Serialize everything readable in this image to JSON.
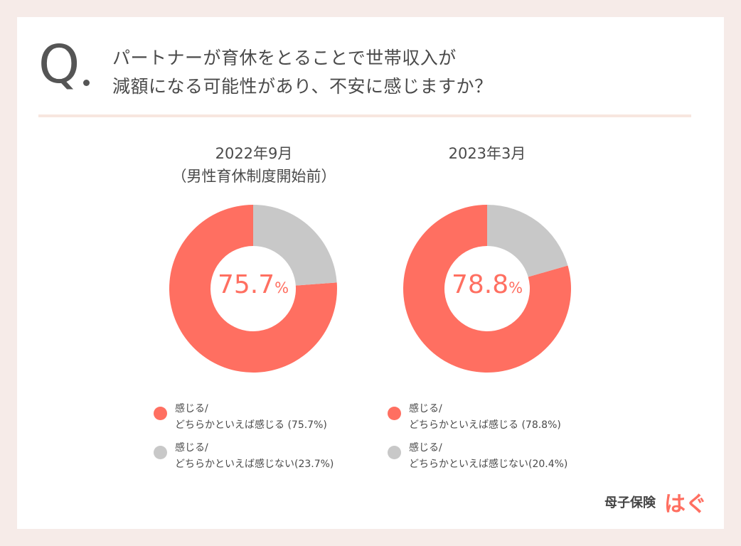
{
  "question": {
    "mark": "Q",
    "line1": "パートナーが育休をとることで世帯収入が",
    "line2": "減額になる可能性があり、不安に感じますか？"
  },
  "chart_data": [
    {
      "type": "pie",
      "donut": true,
      "title_line1": "2022年9月",
      "title_line2": "（男性育休制度開始前）",
      "center_value": "75.7",
      "center_unit": "%",
      "slices": [
        {
          "label": "感じる/どちらかといえば感じる",
          "value": 75.7,
          "color": "#ff6f61"
        },
        {
          "label": "感じる/どちらかといえば感じない",
          "value": 23.7,
          "color": "#c8c8c8"
        }
      ],
      "legend": [
        {
          "line1": "感じる/",
          "line2": "どちらかといえば感じる (75.7%)",
          "color": "#ff6f61"
        },
        {
          "line1": "感じる/",
          "line2": "どちらかといえば感じない(23.7%)",
          "color": "#c8c8c8"
        }
      ]
    },
    {
      "type": "pie",
      "donut": true,
      "title_line1": "2023年3月",
      "center_value": "78.8",
      "center_unit": "%",
      "slices": [
        {
          "label": "感じる/どちらかといえば感じる",
          "value": 78.8,
          "color": "#ff6f61"
        },
        {
          "label": "感じる/どちらかといえば感じない",
          "value": 20.4,
          "color": "#c8c8c8"
        }
      ],
      "legend": [
        {
          "line1": "感じる/",
          "line2": "どちらかといえば感じる (78.8%)",
          "color": "#ff6f61"
        },
        {
          "line1": "感じる/",
          "line2": "どちらかといえば感じない(20.4%)",
          "color": "#c8c8c8"
        }
      ]
    }
  ],
  "brand": {
    "name": "母子保険",
    "logo": "はぐ",
    "color": "#ff6f61"
  }
}
